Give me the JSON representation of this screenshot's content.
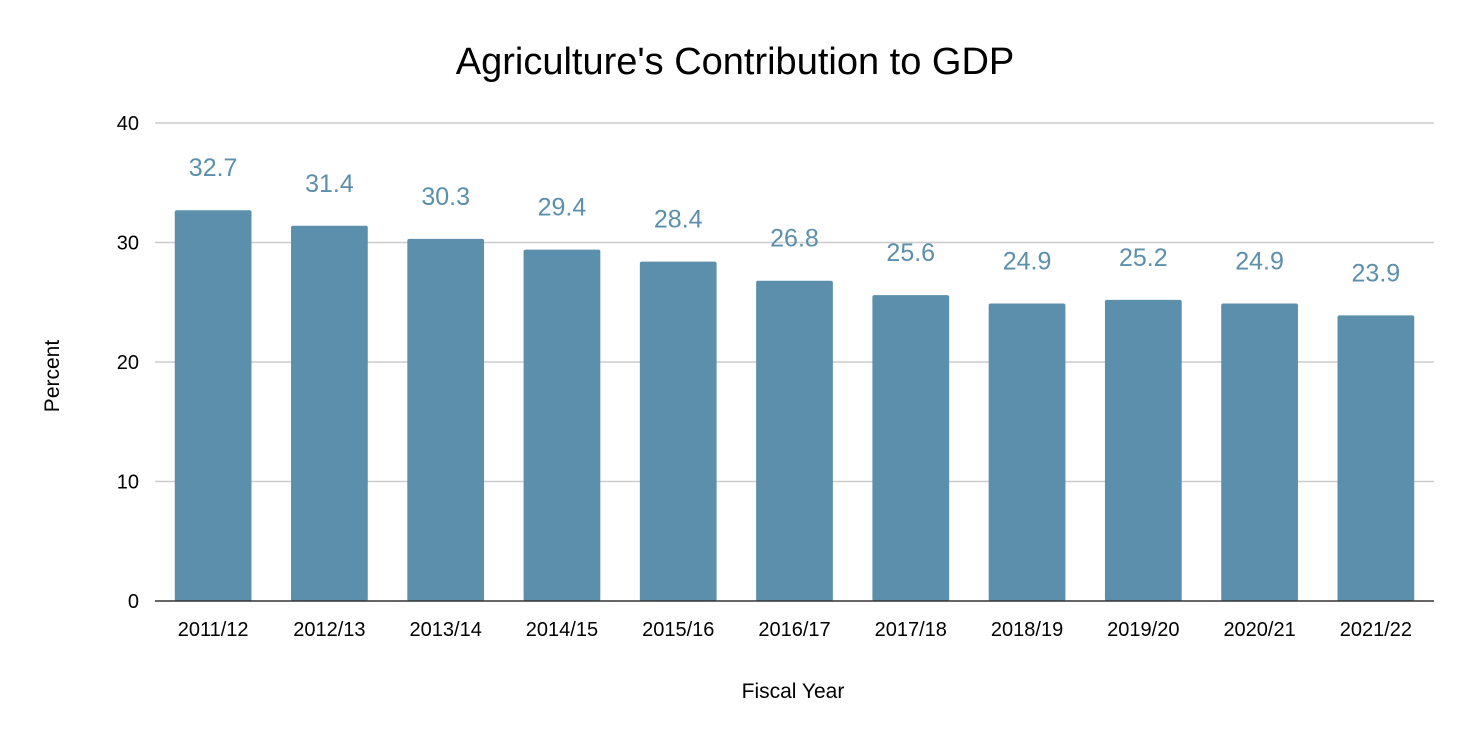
{
  "chart_data": {
    "type": "bar",
    "title": "Agriculture's Contribution to GDP",
    "xlabel": "Fiscal Year",
    "ylabel": "Percent",
    "categories": [
      "2011/12",
      "2012/13",
      "2013/14",
      "2014/15",
      "2015/16",
      "2016/17",
      "2017/18",
      "2018/19",
      "2019/20",
      "2020/21",
      "2021/22"
    ],
    "series": [
      {
        "values": [
          32.7,
          31.4,
          30.3,
          29.4,
          28.4,
          26.8,
          25.6,
          24.9,
          25.2,
          24.9,
          23.9
        ],
        "color": "#5b8fab"
      }
    ],
    "data_labels": [
      "32.7",
      "31.4",
      "30.3",
      "29.4",
      "28.4",
      "26.8",
      "25.6",
      "24.9",
      "25.2",
      "24.9",
      "23.9"
    ],
    "ylim": [
      0,
      40
    ],
    "yticks": [
      "0",
      "10",
      "20",
      "30",
      "40"
    ],
    "grid": true,
    "legend": "none",
    "colors": {
      "bar": "#5b8fab",
      "data_label": "#5b8fab",
      "grid": "#cccccc",
      "axis": "#333333",
      "text": "#000000"
    }
  }
}
